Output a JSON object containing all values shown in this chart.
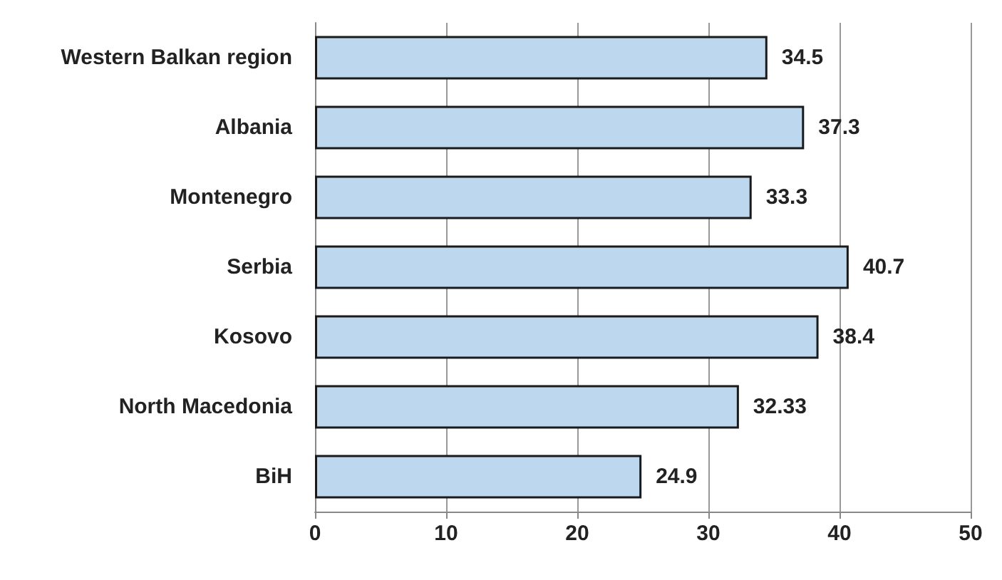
{
  "chart_data": {
    "type": "bar",
    "orientation": "horizontal",
    "categories": [
      "Western Balkan region",
      "Albania",
      "Montenegro",
      "Serbia",
      "Kosovo",
      "North Macedonia",
      "BiH"
    ],
    "values": [
      34.5,
      37.3,
      33.3,
      40.7,
      38.4,
      32.33,
      24.9
    ],
    "color": "#bdd7ee",
    "xlim": [
      0,
      50
    ],
    "xticks": [
      0,
      10,
      20,
      30,
      40,
      50
    ],
    "grid": "x",
    "data_labels": true
  }
}
